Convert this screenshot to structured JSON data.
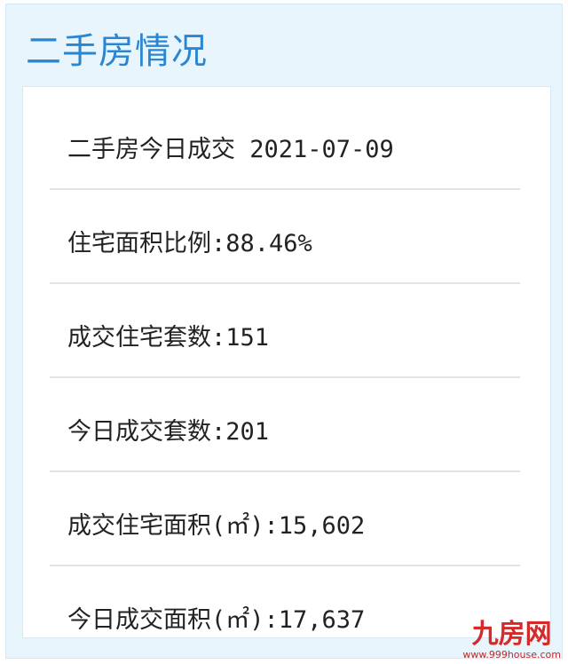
{
  "title": "二手房情况",
  "rows": [
    "二手房今日成交 2021-07-09",
    "住宅面积比例:88.46%",
    "成交住宅套数:151",
    "今日成交套数:201",
    "成交住宅面积(㎡):15,602",
    "今日成交面积(㎡):17,637"
  ],
  "watermark": {
    "name": "九房网",
    "url": "www.999house.com"
  },
  "colors": {
    "title": "#2b86d2",
    "background": "#e9f5fc",
    "watermark": "#d42a2a"
  }
}
